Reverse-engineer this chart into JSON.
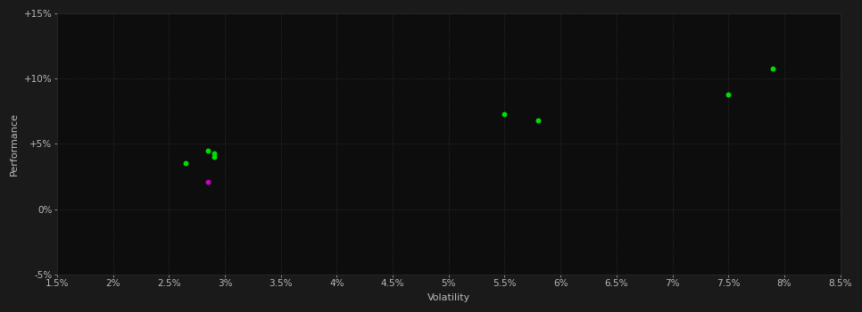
{
  "background_color": "#1a1a1a",
  "plot_bg_color": "#0d0d0d",
  "grid_color": "#2d2d2d",
  "text_color": "#bbbbbb",
  "xlabel": "Volatility",
  "ylabel": "Performance",
  "xlim": [
    0.015,
    0.085
  ],
  "ylim": [
    -0.05,
    0.15
  ],
  "xtick_vals": [
    0.015,
    0.02,
    0.025,
    0.03,
    0.035,
    0.04,
    0.045,
    0.05,
    0.055,
    0.06,
    0.065,
    0.07,
    0.075,
    0.08,
    0.085
  ],
  "xtick_labels": [
    "1.5%",
    "2%",
    "2.5%",
    "3%",
    "3.5%",
    "4%",
    "4.5%",
    "5%",
    "5.5%",
    "6%",
    "6.5%",
    "7%",
    "7.5%",
    "8%",
    "8.5%"
  ],
  "ytick_vals": [
    -0.05,
    0.0,
    0.05,
    0.1,
    0.15
  ],
  "ytick_labels": [
    "-5%",
    "0%",
    "+5%",
    "+10%",
    "+15%"
  ],
  "green_points": [
    [
      0.0285,
      0.045
    ],
    [
      0.029,
      0.043
    ],
    [
      0.029,
      0.04
    ],
    [
      0.0265,
      0.035
    ],
    [
      0.055,
      0.073
    ],
    [
      0.058,
      0.068
    ],
    [
      0.075,
      0.088
    ],
    [
      0.079,
      0.108
    ]
  ],
  "magenta_points": [
    [
      0.0285,
      0.021
    ]
  ],
  "green_color": "#00dd00",
  "magenta_color": "#cc00cc",
  "point_size": 18,
  "fontsize_axes": 8,
  "fontsize_ticks": 7.5
}
